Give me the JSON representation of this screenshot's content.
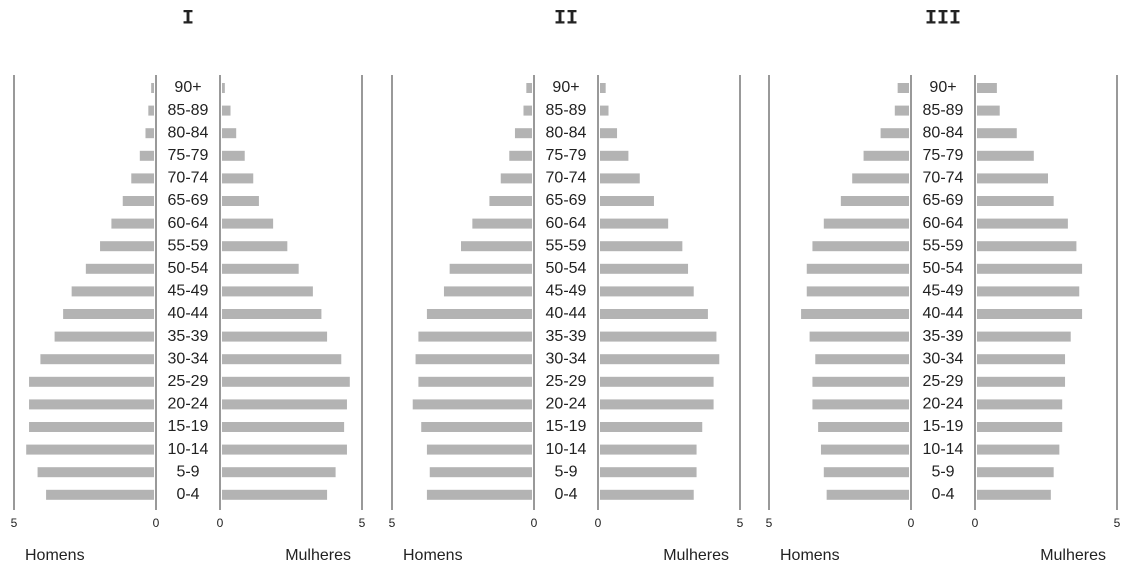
{
  "chart_data": [
    {
      "type": "pyramid",
      "title": "I",
      "categories": [
        "0-4",
        "5-9",
        "10-14",
        "15-19",
        "20-24",
        "25-29",
        "30-34",
        "35-39",
        "40-44",
        "45-49",
        "50-54",
        "55-59",
        "60-64",
        "65-69",
        "70-74",
        "75-79",
        "80-84",
        "85-89",
        "90+"
      ],
      "series": [
        {
          "name": "Homens",
          "color": "#b3b3b3",
          "values": [
            3.8,
            4.1,
            4.5,
            4.4,
            4.4,
            4.4,
            4.0,
            3.5,
            3.2,
            2.9,
            2.4,
            1.9,
            1.5,
            1.1,
            0.8,
            0.5,
            0.3,
            0.2,
            0.1
          ]
        },
        {
          "name": "Mulheres",
          "color": "#b3b3b3",
          "values": [
            3.7,
            4.0,
            4.4,
            4.3,
            4.4,
            4.5,
            4.2,
            3.7,
            3.5,
            3.2,
            2.7,
            2.3,
            1.8,
            1.3,
            1.1,
            0.8,
            0.5,
            0.3,
            0.1
          ]
        }
      ],
      "xlim": [
        0,
        5
      ],
      "xticks": [
        0,
        5
      ]
    },
    {
      "type": "pyramid",
      "title": "II",
      "categories": [
        "0-4",
        "5-9",
        "10-14",
        "15-19",
        "20-24",
        "25-29",
        "30-34",
        "35-39",
        "40-44",
        "45-49",
        "50-54",
        "55-59",
        "60-64",
        "65-69",
        "70-74",
        "75-79",
        "80-84",
        "85-89",
        "90+"
      ],
      "series": [
        {
          "name": "Homens",
          "color": "#b3b3b3",
          "values": [
            3.7,
            3.6,
            3.7,
            3.9,
            4.2,
            4.0,
            4.1,
            4.0,
            3.7,
            3.1,
            2.9,
            2.5,
            2.1,
            1.5,
            1.1,
            0.8,
            0.6,
            0.3,
            0.2
          ]
        },
        {
          "name": "Mulheres",
          "color": "#b3b3b3",
          "values": [
            3.3,
            3.4,
            3.4,
            3.6,
            4.0,
            4.0,
            4.2,
            4.1,
            3.8,
            3.3,
            3.1,
            2.9,
            2.4,
            1.9,
            1.4,
            1.0,
            0.6,
            0.3,
            0.2
          ]
        }
      ],
      "xlim": [
        0,
        5
      ],
      "xticks": [
        0,
        5
      ]
    },
    {
      "type": "pyramid",
      "title": "III",
      "categories": [
        "0-4",
        "5-9",
        "10-14",
        "15-19",
        "20-24",
        "25-29",
        "30-34",
        "35-39",
        "40-44",
        "45-49",
        "50-54",
        "55-59",
        "60-64",
        "65-69",
        "70-74",
        "75-79",
        "80-84",
        "85-89",
        "90+"
      ],
      "series": [
        {
          "name": "Homens",
          "color": "#b3b3b3",
          "values": [
            2.9,
            3.0,
            3.1,
            3.2,
            3.4,
            3.4,
            3.3,
            3.5,
            3.8,
            3.6,
            3.6,
            3.4,
            3.0,
            2.4,
            2.0,
            1.6,
            1.0,
            0.5,
            0.4
          ]
        },
        {
          "name": "Mulheres",
          "color": "#b3b3b3",
          "values": [
            2.6,
            2.7,
            2.9,
            3.0,
            3.0,
            3.1,
            3.1,
            3.3,
            3.7,
            3.6,
            3.7,
            3.5,
            3.2,
            2.7,
            2.5,
            2.0,
            1.4,
            0.8,
            0.7
          ]
        }
      ],
      "xlim": [
        0,
        5
      ],
      "xticks": [
        0,
        5
      ]
    }
  ]
}
